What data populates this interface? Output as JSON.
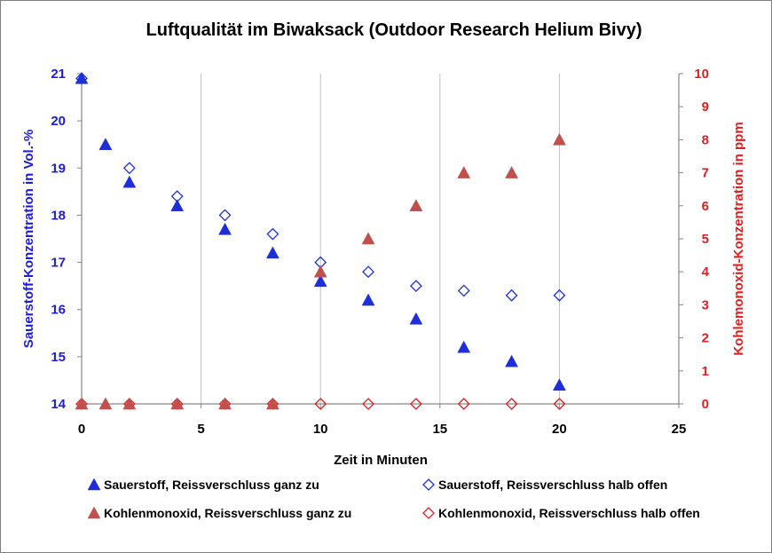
{
  "chart_data": {
    "type": "scatter",
    "title": "Luftqualität im  Biwaksack (Outdoor Research Helium Bivy)",
    "xlabel": "Zeit in Minuten",
    "ylabel_left": "Sauerstoff-Konzentration in Vol.-%",
    "ylabel_right": "Kohlemonoxid-Konzentration in ppm",
    "xlim": [
      0,
      25
    ],
    "ylim_left": [
      14,
      21
    ],
    "ylim_right": [
      0,
      10
    ],
    "x_ticks": [
      0,
      5,
      10,
      15,
      20,
      25
    ],
    "y_left_ticks": [
      14,
      15,
      16,
      17,
      18,
      19,
      20,
      21
    ],
    "y_right_ticks": [
      0,
      1,
      2,
      3,
      4,
      5,
      6,
      7,
      8,
      9,
      10
    ],
    "grid": "vertical",
    "legend_position": "bottom",
    "colors": {
      "left_axis": "#1c1ce0",
      "right_axis": "#e02020",
      "o2_marker": "#1f2fd8",
      "co_marker": "#c0504d",
      "gridline": "#bfbfbf",
      "axis": "#868686"
    },
    "series": [
      {
        "name": "Sauerstoff, Reissverschluss ganz zu",
        "axis": "left",
        "marker": "filled-triangle",
        "color": "#1f2fd8",
        "points": [
          [
            0,
            20.9
          ],
          [
            1,
            19.5
          ],
          [
            2,
            18.7
          ],
          [
            4,
            18.2
          ],
          [
            6,
            17.7
          ],
          [
            8,
            17.2
          ],
          [
            10,
            16.6
          ],
          [
            12,
            16.2
          ],
          [
            14,
            15.8
          ],
          [
            16,
            15.2
          ],
          [
            18,
            14.9
          ],
          [
            20,
            14.4
          ]
        ]
      },
      {
        "name": "Sauerstoff, Reissverschluss halb offen",
        "axis": "left",
        "marker": "open-diamond",
        "color": "#1f2fd8",
        "points": [
          [
            0,
            20.9
          ],
          [
            2,
            19.0
          ],
          [
            4,
            18.4
          ],
          [
            6,
            18.0
          ],
          [
            8,
            17.6
          ],
          [
            10,
            17.0
          ],
          [
            12,
            16.8
          ],
          [
            14,
            16.5
          ],
          [
            16,
            16.4
          ],
          [
            18,
            16.3
          ],
          [
            20,
            16.3
          ]
        ]
      },
      {
        "name": "Kohlenmonoxid, Reissverschluss ganz zu",
        "axis": "right",
        "marker": "filled-triangle",
        "color": "#c0504d",
        "points": [
          [
            0,
            0
          ],
          [
            1,
            0
          ],
          [
            2,
            0
          ],
          [
            4,
            0
          ],
          [
            6,
            0
          ],
          [
            8,
            0
          ],
          [
            10,
            4
          ],
          [
            12,
            5
          ],
          [
            14,
            6
          ],
          [
            16,
            7
          ],
          [
            18,
            7
          ],
          [
            20,
            8
          ]
        ]
      },
      {
        "name": "Kohlenmonoxid, Reissverschluss halb offen",
        "axis": "right",
        "marker": "open-diamond",
        "color": "#e02020",
        "points": [
          [
            0,
            0
          ],
          [
            2,
            0
          ],
          [
            4,
            0
          ],
          [
            6,
            0
          ],
          [
            8,
            0
          ],
          [
            10,
            0
          ],
          [
            12,
            0
          ],
          [
            14,
            0
          ],
          [
            16,
            0
          ],
          [
            18,
            0
          ],
          [
            20,
            0
          ]
        ]
      }
    ]
  }
}
